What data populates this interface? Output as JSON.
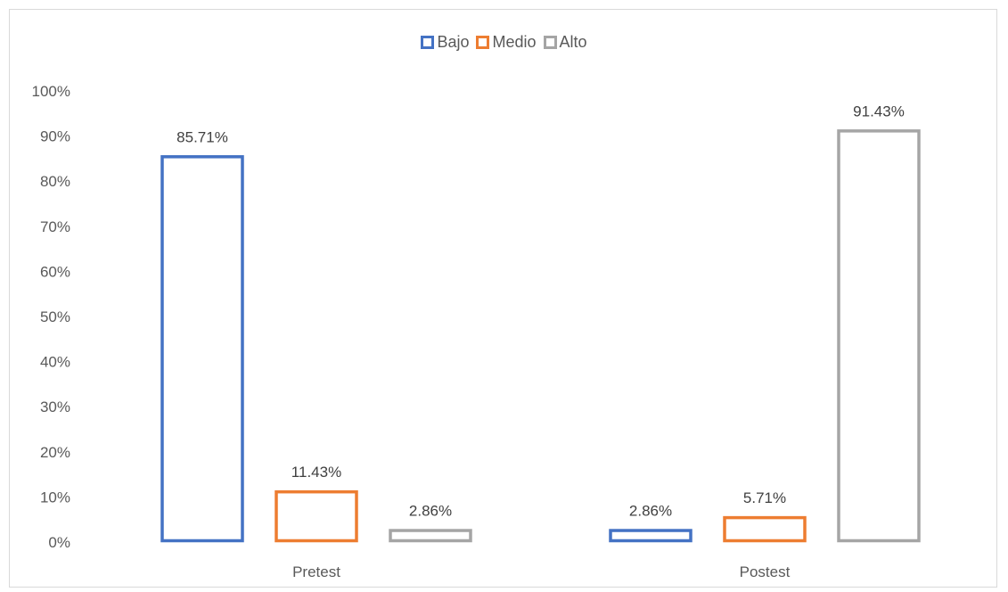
{
  "chart_data": {
    "type": "bar",
    "categories": [
      "Pretest",
      "Postest"
    ],
    "series": [
      {
        "name": "Bajo",
        "values": [
          85.71,
          2.86
        ],
        "labels": [
          "85.71%",
          "2.86%"
        ],
        "color": "#4472c4"
      },
      {
        "name": "Medio",
        "values": [
          11.43,
          5.71
        ],
        "labels": [
          "11.43%",
          "5.71%"
        ],
        "color": "#ed7d31"
      },
      {
        "name": "Alto",
        "values": [
          2.86,
          91.43
        ],
        "labels": [
          "2.86%",
          "91.43%"
        ],
        "color": "#a5a5a5"
      }
    ],
    "y_ticks": [
      "0%",
      "10%",
      "20%",
      "30%",
      "40%",
      "50%",
      "60%",
      "70%",
      "80%",
      "90%",
      "100%"
    ],
    "ylim": [
      0,
      100
    ],
    "grid": false,
    "legend_position": "top"
  }
}
